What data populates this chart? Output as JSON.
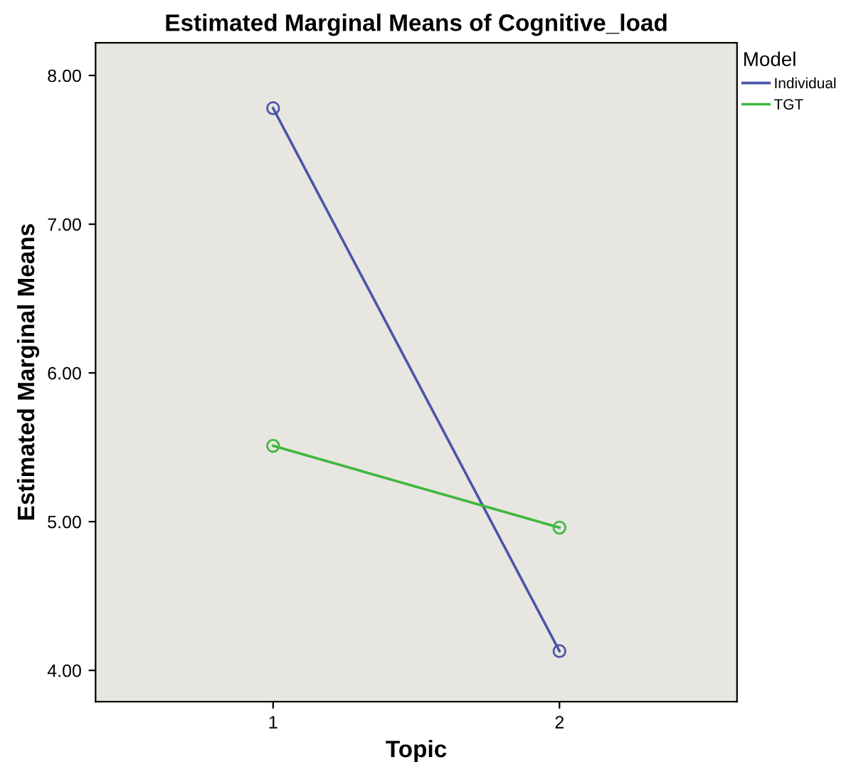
{
  "chart_data": {
    "type": "line",
    "title": "Estimated Marginal Means of Cognitive_load",
    "xlabel": "Topic",
    "ylabel": "Estimated Marginal Means",
    "legend_title": "Model",
    "categories": [
      "1",
      "2"
    ],
    "series": [
      {
        "name": "Individual",
        "color": "#4a55a8",
        "values": [
          7.78,
          4.13
        ]
      },
      {
        "name": "TGT",
        "color": "#3fb83f",
        "values": [
          5.51,
          4.96
        ]
      }
    ],
    "ylim": [
      3.79,
      8.22
    ],
    "yticks": [
      {
        "value": 4,
        "label": "4.00"
      },
      {
        "value": 5,
        "label": "5.00"
      },
      {
        "value": 6,
        "label": "6.00"
      },
      {
        "value": 7,
        "label": "7.00"
      },
      {
        "value": 8,
        "label": "8.00"
      }
    ],
    "grid": false,
    "legend": "top right",
    "marker": "circle",
    "line_style": "solid"
  }
}
